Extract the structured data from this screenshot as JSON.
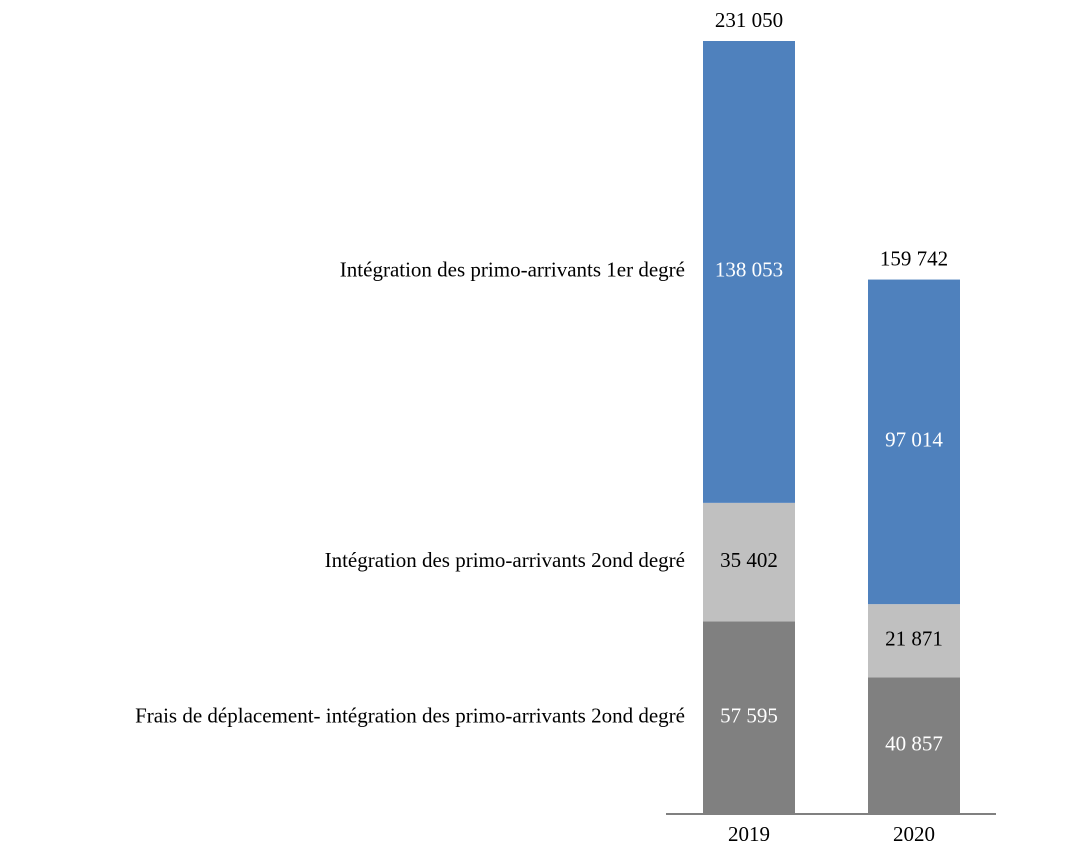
{
  "chart_data": {
    "type": "stacked-bar",
    "categories": [
      "2019",
      "2020"
    ],
    "series": [
      {
        "name": "Frais de déplacement- intégration des primo-arrivants 2ond degré",
        "color": "#808080",
        "values": [
          57595,
          40857
        ],
        "value_labels": [
          "57 595",
          "40 857"
        ]
      },
      {
        "name": "Intégration des primo-arrivants 2ond degré",
        "color": "#c0c0c0",
        "values": [
          35402,
          21871
        ],
        "value_labels": [
          "35 402",
          "21 871"
        ]
      },
      {
        "name": "Intégration des primo-arrivants 1er degré",
        "color": "#4f81bd",
        "values": [
          138053,
          97014
        ],
        "value_labels": [
          "138 053",
          "97 014"
        ]
      }
    ],
    "totals": [
      231050,
      159742
    ],
    "total_labels": [
      "231 050",
      "159 742"
    ]
  }
}
